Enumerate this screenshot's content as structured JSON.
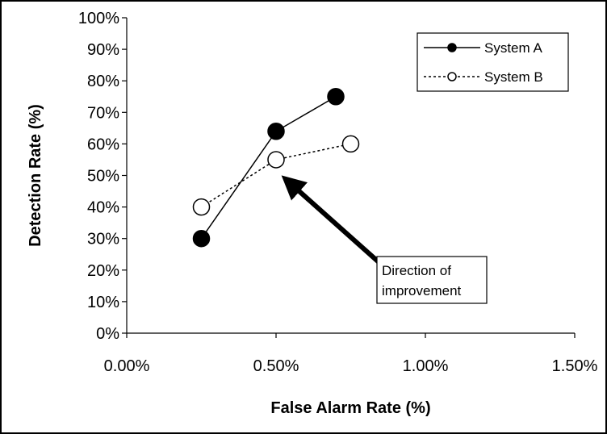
{
  "chart_data": {
    "type": "line",
    "title": "",
    "xlabel": "False Alarm Rate (%)",
    "ylabel": "Detection Rate (%)",
    "xlim": [
      0,
      1.5
    ],
    "ylim": [
      0,
      100
    ],
    "x_ticks": [
      0,
      0.5,
      1.0,
      1.5
    ],
    "x_tick_labels": [
      "0.00%",
      "0.50%",
      "1.00%",
      "1.50%"
    ],
    "y_ticks": [
      0,
      10,
      20,
      30,
      40,
      50,
      60,
      70,
      80,
      90,
      100
    ],
    "y_tick_labels": [
      "0%",
      "10%",
      "20%",
      "30%",
      "40%",
      "50%",
      "60%",
      "70%",
      "80%",
      "90%",
      "100%"
    ],
    "grid": false,
    "legend_position": "top-right",
    "series": [
      {
        "name": "System A",
        "marker": "filled-circle",
        "line_style": "solid",
        "color": "#000000",
        "x": [
          0.25,
          0.5,
          0.7
        ],
        "y": [
          30,
          64,
          75
        ]
      },
      {
        "name": "System B",
        "marker": "open-circle",
        "line_style": "dotted",
        "color": "#000000",
        "x": [
          0.25,
          0.5,
          0.75
        ],
        "y": [
          40,
          55,
          60
        ]
      }
    ],
    "annotation": {
      "text_lines": [
        "Direction of",
        "improvement"
      ],
      "arrow_from": [
        0.85,
        22
      ],
      "arrow_to": [
        0.53,
        49
      ]
    }
  }
}
